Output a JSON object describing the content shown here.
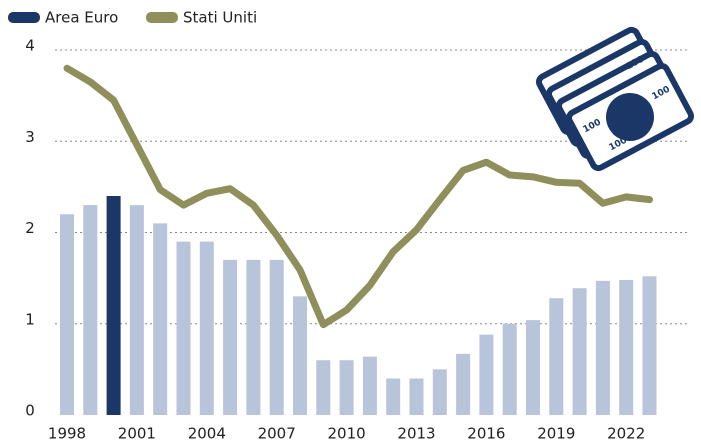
{
  "chart_data": {
    "type": "bar",
    "categories": [
      "1998",
      null,
      null,
      "2001",
      null,
      null,
      "2004",
      null,
      null,
      "2007",
      null,
      null,
      "2010",
      null,
      null,
      "2013",
      null,
      null,
      "2016",
      null,
      null,
      "2019",
      null,
      null,
      "2022",
      null
    ],
    "series": [
      {
        "name": "Area Euro",
        "type": "bar",
        "color": "#1b3768",
        "colors": [
          "#b8c4d9",
          "#b8c4d9",
          "#1b3768",
          "#b8c4d9",
          "#b8c4d9",
          "#b8c4d9",
          "#b8c4d9",
          "#b8c4d9",
          "#b8c4d9",
          "#b8c4d9",
          "#b8c4d9",
          "#b8c4d9",
          "#b8c4d9",
          "#b8c4d9",
          "#b8c4d9",
          "#b8c4d9",
          "#b8c4d9",
          "#b8c4d9",
          "#b8c4d9",
          "#b8c4d9",
          "#b8c4d9",
          "#b8c4d9",
          "#b8c4d9",
          "#b8c4d9",
          "#b8c4d9",
          "#b8c4d9"
        ],
        "values": [
          2.2,
          2.3,
          2.4,
          2.3,
          2.1,
          1.9,
          1.9,
          1.7,
          1.7,
          1.7,
          1.3,
          0.6,
          0.6,
          0.64,
          0.4,
          0.4,
          0.5,
          0.67,
          0.88,
          1.0,
          1.04,
          1.28,
          1.39,
          1.47,
          1.48,
          1.52
        ]
      },
      {
        "name": "Stati Uniti",
        "type": "line",
        "color": "#8e8f5a",
        "values": [
          3.8,
          3.65,
          3.45,
          2.96,
          2.47,
          2.3,
          2.43,
          2.48,
          2.3,
          1.97,
          1.59,
          0.99,
          1.15,
          1.42,
          1.79,
          2.03,
          2.36,
          2.68,
          2.77,
          2.63,
          2.61,
          2.55,
          2.54,
          2.32,
          2.39,
          2.36
        ]
      }
    ],
    "ylim": [
      0,
      4
    ],
    "yticks": [
      0,
      1,
      2,
      3,
      4
    ],
    "grid": true,
    "icon_text": "100"
  }
}
